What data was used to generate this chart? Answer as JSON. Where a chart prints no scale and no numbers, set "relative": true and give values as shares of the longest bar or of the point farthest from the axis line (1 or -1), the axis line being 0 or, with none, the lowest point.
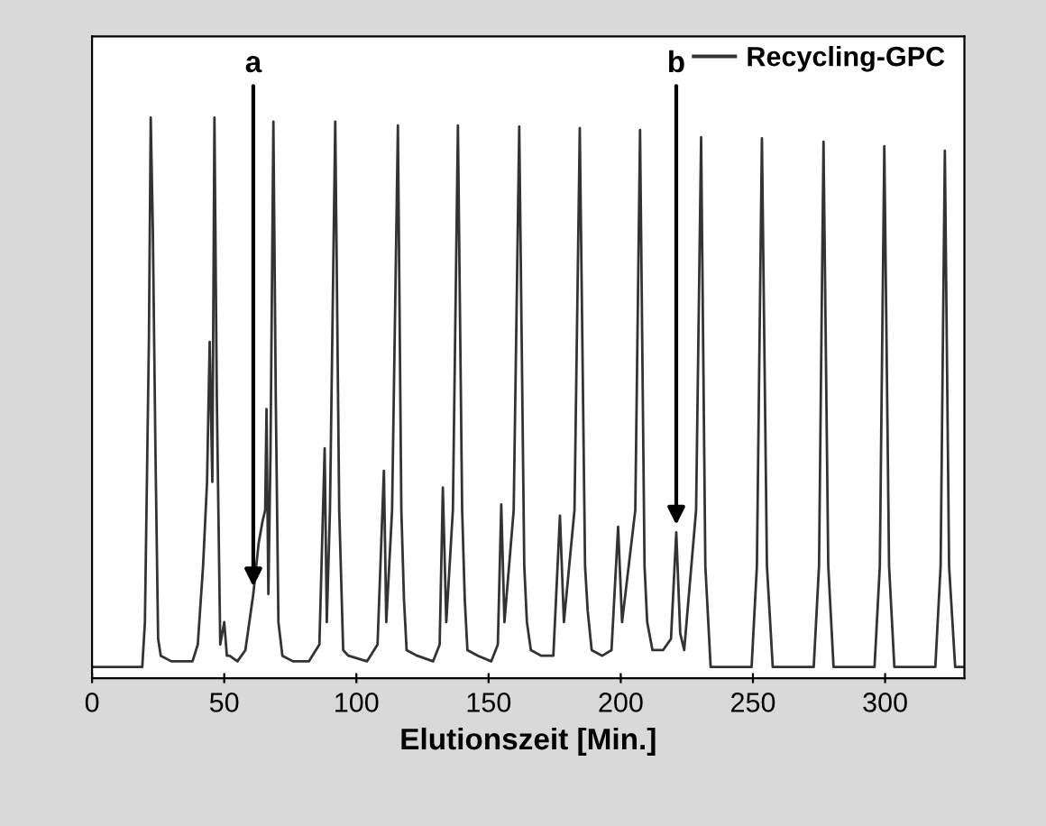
{
  "chart_data": {
    "type": "line",
    "relative": true,
    "xlabel": "Elutionszeit [Min.]",
    "xlim": [
      0,
      330
    ],
    "xticks": [
      0,
      50,
      100,
      150,
      200,
      250,
      300
    ],
    "legend": "top right",
    "grid": false,
    "marker": "none",
    "line_style": "solid",
    "annotations": [
      {
        "text": "a",
        "x": 61,
        "y": 0.15
      },
      {
        "text": "b",
        "x": 221,
        "y": 0.26
      }
    ],
    "series": [
      {
        "name": "Recycling-GPC",
        "color": "#333333",
        "x": [
          0,
          10,
          19,
          20,
          21.5,
          22.2,
          23,
          24,
          25,
          26,
          30,
          35,
          38,
          40,
          42,
          43.5,
          44.5,
          45.5,
          46.3,
          47.2,
          48.5,
          50,
          51,
          52,
          55,
          58,
          61,
          63,
          64.5,
          65.5,
          66,
          66.7,
          67.5,
          68.6,
          69.5,
          70.5,
          72,
          76,
          82,
          86,
          88,
          88.8,
          90,
          92,
          93.5,
          95,
          97,
          104,
          108,
          110.4,
          111.3,
          113.5,
          115.7,
          117,
          118,
          119,
          123,
          129,
          131.5,
          132.7,
          134,
          136.5,
          138.4,
          140,
          141,
          142,
          146,
          151,
          153.5,
          154.8,
          156,
          159.5,
          161.6,
          163.5,
          164.5,
          166,
          170,
          174.5,
          177,
          178.5,
          182.5,
          184.5,
          186.5,
          187.5,
          189,
          193,
          196.5,
          199,
          200.5,
          205.5,
          207.3,
          209,
          210,
          212,
          216,
          219,
          221,
          222.5,
          224,
          228.5,
          230.4,
          232,
          234,
          249.5,
          251.5,
          253.4,
          255.3,
          257.5,
          273,
          275,
          276.7,
          278.5,
          280.5,
          296,
          298,
          299.7,
          301.5,
          303.5,
          319,
          321,
          322.6,
          324.2,
          326.5,
          330
        ],
        "values": [
          0.02,
          0.02,
          0.02,
          0.1,
          0.6,
          1.0,
          0.8,
          0.4,
          0.07,
          0.04,
          0.03,
          0.03,
          0.03,
          0.06,
          0.2,
          0.35,
          0.6,
          0.35,
          1.0,
          0.5,
          0.06,
          0.1,
          0.04,
          0.04,
          0.03,
          0.05,
          0.15,
          0.24,
          0.28,
          0.3,
          0.48,
          0.15,
          0.4,
          0.993,
          0.5,
          0.1,
          0.04,
          0.03,
          0.03,
          0.06,
          0.41,
          0.1,
          0.3,
          0.993,
          0.3,
          0.05,
          0.04,
          0.03,
          0.06,
          0.37,
          0.1,
          0.3,
          0.986,
          0.3,
          0.14,
          0.05,
          0.04,
          0.03,
          0.06,
          0.34,
          0.1,
          0.3,
          0.986,
          0.3,
          0.14,
          0.05,
          0.04,
          0.03,
          0.06,
          0.31,
          0.1,
          0.3,
          0.984,
          0.2,
          0.1,
          0.05,
          0.04,
          0.04,
          0.29,
          0.1,
          0.3,
          0.981,
          0.2,
          0.12,
          0.05,
          0.04,
          0.05,
          0.27,
          0.1,
          0.3,
          0.978,
          0.2,
          0.1,
          0.05,
          0.05,
          0.07,
          0.26,
          0.08,
          0.05,
          0.3,
          0.965,
          0.2,
          0.02,
          0.02,
          0.2,
          0.963,
          0.2,
          0.02,
          0.02,
          0.2,
          0.957,
          0.2,
          0.02,
          0.02,
          0.2,
          0.949,
          0.2,
          0.02,
          0.02,
          0.2,
          0.941,
          0.2,
          0.02,
          0.02
        ]
      }
    ]
  }
}
